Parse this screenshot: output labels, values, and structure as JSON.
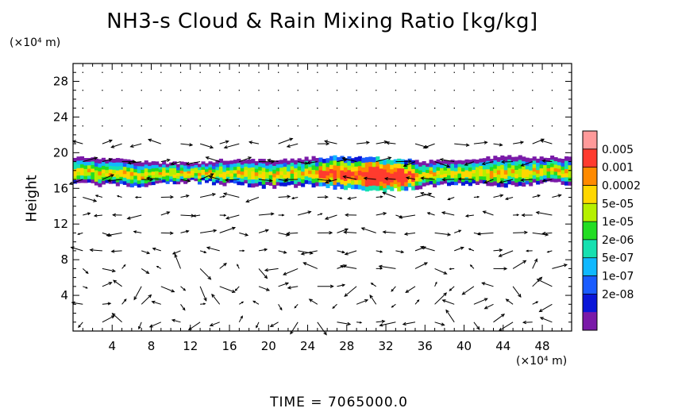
{
  "chart_data": {
    "type": "heatmap",
    "title": "NH3-s Cloud & Rain Mixing Ratio [kg/kg]",
    "ylabel": "Height",
    "x_unit_label": "(×10⁴ m)",
    "y_unit_label": "(×10⁴ m)",
    "xlim": [
      0,
      51
    ],
    "ylim": [
      0,
      30
    ],
    "x_ticks": [
      4,
      8,
      12,
      16,
      20,
      24,
      28,
      32,
      36,
      40,
      44,
      48
    ],
    "y_ticks": [
      4,
      8,
      12,
      16,
      20,
      24,
      28
    ],
    "colorbar": {
      "labels": [
        "0.005",
        "0.001",
        "0.0002",
        "5e-05",
        "1e-05",
        "2e-06",
        "5e-07",
        "1e-07",
        "2e-08"
      ],
      "colors": [
        "#ff9a9a",
        "#ff3b2e",
        "#ff8a00",
        "#ffd700",
        "#b5f000",
        "#22dd22",
        "#16e0b0",
        "#10b8ff",
        "#1a5cff",
        "#0a16d8",
        "#7a1aa8"
      ]
    },
    "cloud_band": {
      "y_bottom": [
        16.5,
        16.4,
        16.3,
        16.8,
        16.5,
        16.2,
        16.3,
        16.0,
        15.8,
        16.2,
        16.5,
        16.3,
        16.6
      ],
      "y_top": [
        19.5,
        19.3,
        19.0,
        18.8,
        19.3,
        19.1,
        19.4,
        19.6,
        19.4,
        19.0,
        19.2,
        19.6,
        19.5
      ],
      "x": [
        0,
        4,
        8,
        12,
        16,
        20,
        24,
        28,
        32,
        36,
        40,
        44,
        48
      ]
    },
    "footer": "TIME  =  7065000.0"
  }
}
